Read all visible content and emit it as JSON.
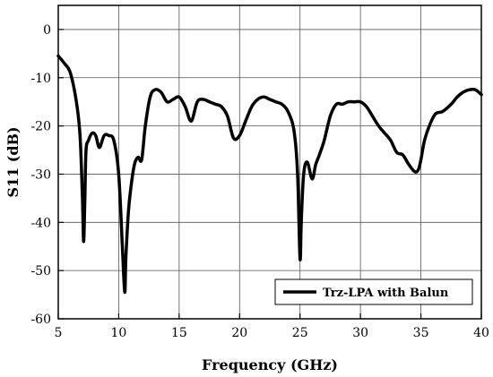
{
  "chart_data": {
    "type": "line",
    "xlabel": "Frequency (GHz)",
    "ylabel": "S11 (dB)",
    "xlim": [
      5,
      40
    ],
    "ylim": [
      -60,
      5
    ],
    "xticks": [
      5,
      10,
      15,
      20,
      25,
      30,
      35,
      40
    ],
    "yticks": [
      0,
      -10,
      -20,
      -30,
      -40,
      -50,
      -60
    ],
    "grid": true,
    "legend_position": "bottom-right",
    "series": [
      {
        "name": "Trz-LPA with Balun",
        "color": "#000000",
        "x": [
          5.0,
          5.5,
          6.0,
          6.5,
          6.8,
          7.0,
          7.1,
          7.2,
          7.3,
          7.5,
          7.8,
          8.1,
          8.4,
          8.8,
          9.2,
          9.6,
          10.0,
          10.3,
          10.5,
          10.6,
          10.8,
          11.0,
          11.3,
          11.6,
          11.9,
          12.2,
          12.6,
          13.0,
          13.5,
          14.0,
          14.5,
          15.0,
          15.5,
          16.0,
          16.5,
          17.0,
          17.5,
          18.0,
          18.5,
          19.0,
          19.5,
          20.0,
          20.5,
          21.0,
          21.5,
          22.0,
          22.5,
          23.0,
          23.5,
          24.0,
          24.5,
          24.8,
          25.0,
          25.1,
          25.3,
          25.6,
          26.0,
          26.3,
          26.6,
          27.0,
          27.5,
          28.0,
          28.5,
          29.0,
          29.5,
          30.0,
          30.5,
          31.0,
          31.5,
          32.0,
          32.5,
          33.0,
          33.5,
          34.0,
          34.5,
          34.8,
          35.0,
          35.3,
          35.7,
          36.2,
          36.8,
          37.5,
          38.0,
          38.5,
          39.0,
          39.5,
          40.0
        ],
        "y": [
          -5.5,
          -7.0,
          -9.0,
          -15.0,
          -22.0,
          -35.0,
          -44.0,
          -35.0,
          -25.0,
          -23.0,
          -21.5,
          -22.0,
          -24.5,
          -22.0,
          -22.0,
          -23.0,
          -30.0,
          -45.0,
          -54.5,
          -47.0,
          -38.0,
          -33.0,
          -28.0,
          -26.5,
          -27.0,
          -20.0,
          -14.0,
          -12.5,
          -13.0,
          -15.0,
          -14.5,
          -14.0,
          -16.0,
          -19.0,
          -15.0,
          -14.5,
          -15.0,
          -15.5,
          -16.0,
          -18.0,
          -22.5,
          -22.0,
          -19.0,
          -16.0,
          -14.5,
          -14.0,
          -14.5,
          -15.0,
          -15.5,
          -17.0,
          -21.0,
          -30.0,
          -47.5,
          -40.0,
          -30.0,
          -27.5,
          -31.0,
          -28.0,
          -26.0,
          -23.0,
          -18.0,
          -15.5,
          -15.5,
          -15.0,
          -15.0,
          -15.0,
          -16.0,
          -18.0,
          -20.0,
          -21.5,
          -23.0,
          -25.5,
          -26.0,
          -28.0,
          -29.5,
          -29.0,
          -27.0,
          -23.0,
          -20.0,
          -17.5,
          -17.0,
          -15.5,
          -14.0,
          -13.0,
          -12.5,
          -12.5,
          -13.5
        ]
      }
    ]
  }
}
